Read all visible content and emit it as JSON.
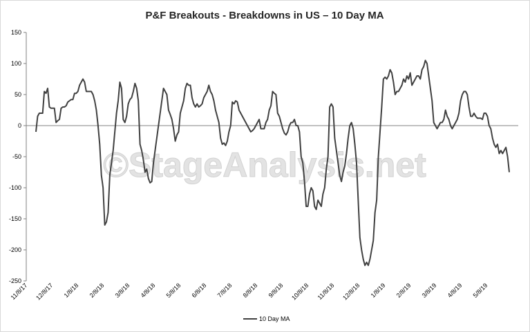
{
  "chart_data": {
    "type": "line",
    "title": "P&F Breakouts - Breakdowns in US – 10 Day MA",
    "xlabel": "",
    "ylabel": "",
    "ylim": [
      -250,
      150
    ],
    "yticks": [
      150,
      100,
      50,
      0,
      -50,
      -100,
      -150,
      -200,
      -250
    ],
    "x_tick_labels": [
      "11/8/17",
      "12/8/17",
      "1/8/18",
      "2/8/18",
      "3/8/18",
      "4/8/18",
      "5/8/18",
      "6/8/18",
      "7/8/18",
      "8/8/18",
      "9/8/18",
      "10/8/18",
      "11/8/18",
      "12/8/18",
      "1/8/19",
      "2/8/19",
      "3/8/19",
      "4/8/19",
      "5/8/19"
    ],
    "grid": false,
    "legend_position": "bottom",
    "line_color": "#404040",
    "watermark": "©StageAnalysis.net",
    "series": [
      {
        "name": "10 Day MA",
        "values": [
          -10,
          15,
          20,
          20,
          20,
          55,
          52,
          60,
          30,
          28,
          28,
          28,
          5,
          8,
          10,
          28,
          30,
          30,
          32,
          38,
          40,
          42,
          42,
          52,
          52,
          55,
          65,
          70,
          75,
          70,
          55,
          55,
          55,
          55,
          50,
          40,
          25,
          0,
          -30,
          -80,
          -100,
          -160,
          -155,
          -140,
          -80,
          -60,
          -40,
          -10,
          20,
          40,
          70,
          60,
          10,
          5,
          15,
          35,
          42,
          45,
          55,
          68,
          60,
          40,
          -30,
          -40,
          -55,
          -75,
          -70,
          -85,
          -92,
          -90,
          -60,
          -40,
          -20,
          0,
          20,
          40,
          60,
          55,
          50,
          25,
          18,
          10,
          -5,
          -25,
          -15,
          -10,
          20,
          30,
          40,
          60,
          68,
          65,
          65,
          45,
          35,
          30,
          35,
          30,
          32,
          35,
          45,
          50,
          55,
          65,
          55,
          50,
          40,
          25,
          15,
          5,
          -20,
          -30,
          -28,
          -32,
          -25,
          -10,
          0,
          38,
          35,
          40,
          38,
          25,
          20,
          15,
          10,
          5,
          0,
          -5,
          -10,
          -8,
          -5,
          0,
          5,
          10,
          -5,
          -5,
          -5,
          5,
          10,
          25,
          32,
          55,
          52,
          50,
          20,
          15,
          5,
          -5,
          -12,
          -15,
          -10,
          0,
          5,
          5,
          10,
          0,
          0,
          -10,
          -50,
          -60,
          -90,
          -130,
          -130,
          -110,
          -100,
          -105,
          -130,
          -135,
          -120,
          -125,
          -130,
          -110,
          -100,
          -70,
          -50,
          30,
          35,
          30,
          -20,
          -40,
          -60,
          -80,
          -90,
          -75,
          -65,
          -45,
          -20,
          0,
          5,
          -5,
          -30,
          -60,
          -120,
          -180,
          -200,
          -215,
          -225,
          -220,
          -225,
          -215,
          -200,
          -185,
          -140,
          -120,
          -50,
          -10,
          30,
          75,
          78,
          75,
          80,
          90,
          85,
          70,
          50,
          55,
          55,
          60,
          65,
          75,
          70,
          80,
          75,
          85,
          65,
          70,
          75,
          80,
          80,
          75,
          90,
          95,
          105,
          100,
          80,
          60,
          40,
          5,
          0,
          -5,
          0,
          5,
          5,
          10,
          25,
          15,
          10,
          0,
          -5,
          0,
          5,
          10,
          20,
          40,
          50,
          55,
          55,
          50,
          30,
          15,
          15,
          20,
          15,
          12,
          12,
          12,
          10,
          20,
          20,
          15,
          0,
          -5,
          -20,
          -30,
          -35,
          -30,
          -45,
          -40,
          -45,
          -40,
          -35,
          -50,
          -75
        ]
      }
    ]
  }
}
